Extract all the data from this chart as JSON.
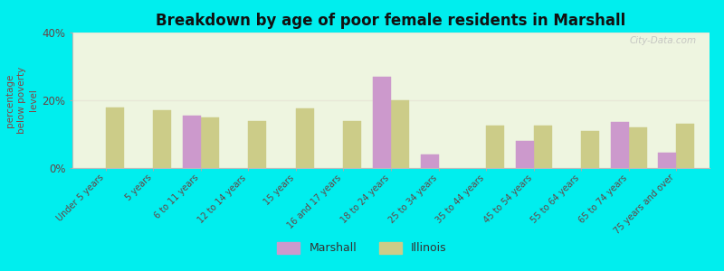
{
  "title": "Breakdown by age of poor female residents in Marshall",
  "ylabel": "percentage\nbelow poverty\nlevel",
  "categories": [
    "Under 5 years",
    "5 years",
    "6 to 11 years",
    "12 to 14 years",
    "15 years",
    "16 and 17 years",
    "18 to 24 years",
    "25 to 34 years",
    "35 to 44 years",
    "45 to 54 years",
    "55 to 64 years",
    "65 to 74 years",
    "75 years and over"
  ],
  "marshall_values": [
    null,
    null,
    15.5,
    null,
    null,
    null,
    27.0,
    4.0,
    null,
    8.0,
    null,
    13.5,
    4.5
  ],
  "illinois_values": [
    18.0,
    17.0,
    15.0,
    14.0,
    17.5,
    14.0,
    20.0,
    null,
    12.5,
    12.5,
    11.0,
    12.0,
    13.0
  ],
  "marshall_color": "#cc99cc",
  "illinois_color": "#cccc88",
  "background_color": "#00eeee",
  "plot_bg": "#eef5e0",
  "title_color": "#111111",
  "axis_label_color": "#884444",
  "tick_label_color": "#664444",
  "ylim": [
    0,
    40
  ],
  "yticks": [
    0,
    20,
    40
  ],
  "ytick_labels": [
    "0%",
    "20%",
    "40%"
  ],
  "bar_width": 0.38,
  "legend_marshall": "Marshall",
  "legend_illinois": "Illinois",
  "watermark": "City-Data.com"
}
